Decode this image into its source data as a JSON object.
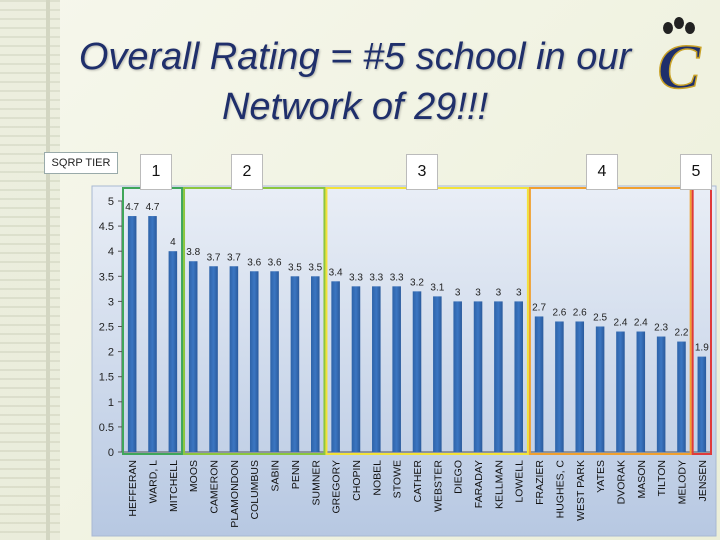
{
  "title": "Overall Rating = #5 school in our Network of 29!!!",
  "logo": {
    "text": "C",
    "icon": "paw-print-icon"
  },
  "tier_label": "SQRP TIER",
  "tiers": [
    {
      "label": "1",
      "color": "#3fa65a"
    },
    {
      "label": "2",
      "color": "#8cc63f"
    },
    {
      "label": "3",
      "color": "#f2e23a"
    },
    {
      "label": "4",
      "color": "#f0a030"
    },
    {
      "label": "5",
      "color": "#e03a3a"
    }
  ],
  "chart_data": {
    "type": "bar",
    "categories": [
      "HEFFERAN",
      "WARD, L",
      "MITCHELL",
      "MOOS",
      "CAMERON",
      "PLAMONDON",
      "COLUMBUS",
      "SABIN",
      "PENN",
      "SUMNER",
      "GREGORY",
      "CHOPIN",
      "NOBEL",
      "STOWE",
      "CATHER",
      "WEBSTER",
      "DIEGO",
      "FARADAY",
      "KELLMAN",
      "LOWELL",
      "FRAZIER",
      "HUGHES, C",
      "WEST PARK",
      "YATES",
      "DVORAK",
      "MASON",
      "TILTON",
      "MELODY",
      "JENSEN"
    ],
    "values": [
      4.7,
      4.7,
      4,
      3.8,
      3.7,
      3.7,
      3.6,
      3.6,
      3.5,
      3.5,
      3.4,
      3.3,
      3.3,
      3.3,
      3.2,
      3.1,
      3,
      3,
      3,
      3,
      2.7,
      2.6,
      2.6,
      2.5,
      2.4,
      2.4,
      2.3,
      2.2,
      1.9
    ],
    "data_labels": [
      "4.7",
      "4.7",
      "4",
      "3.8",
      "3.7",
      "3.7",
      "3.6",
      "3.6",
      "3.5",
      "3.5",
      "3.4",
      "3.3",
      "3.3",
      "3.3",
      "3.2",
      "3.1",
      "3",
      "3",
      "3",
      "3",
      "2.7",
      "2.6",
      "2.6",
      "2.5",
      "2.4",
      "2.4",
      "2.3",
      "2.2",
      "1.9"
    ],
    "ylim": [
      0,
      5
    ],
    "yticks": [
      "0",
      "0.5",
      "1",
      "1.5",
      "2",
      "2.5",
      "3",
      "3.5",
      "4",
      "4.5",
      "5"
    ],
    "tier_groups": [
      [
        0,
        2
      ],
      [
        3,
        9
      ],
      [
        10,
        19
      ],
      [
        20,
        27
      ],
      [
        28,
        28
      ]
    ],
    "bar_color": "#3b76c2",
    "grid": false
  }
}
